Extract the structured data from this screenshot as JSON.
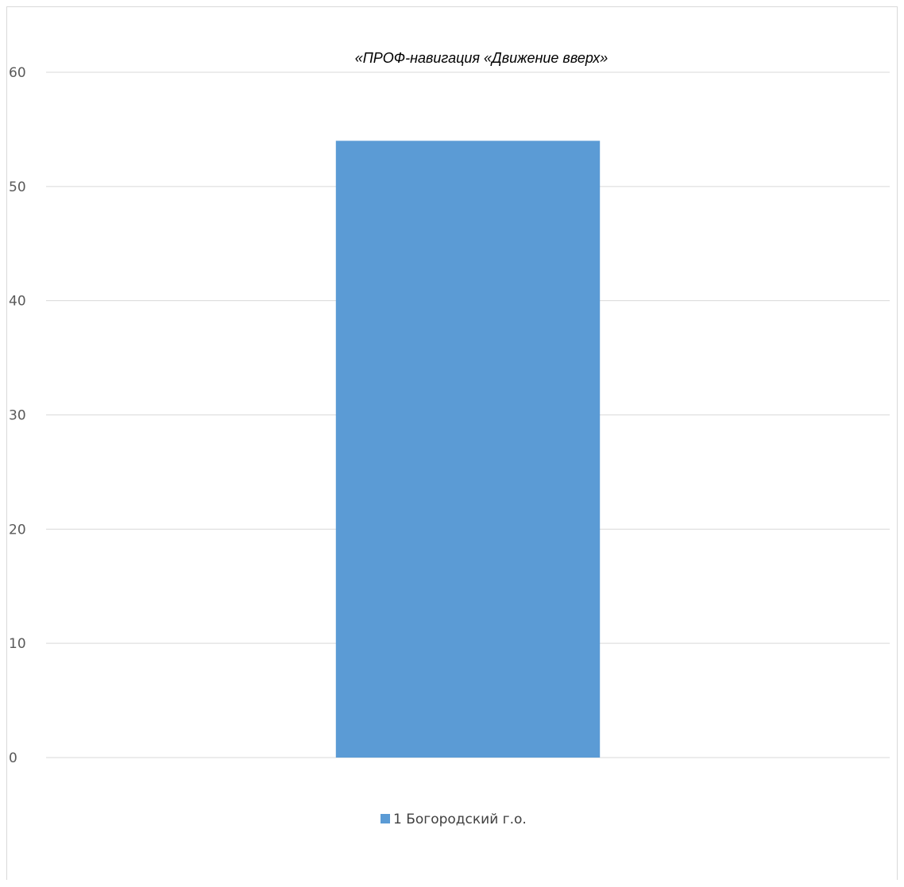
{
  "chart_data": {
    "type": "bar",
    "title": "«ПРОФ-навигация «Движение вверх»",
    "categories": [
      ""
    ],
    "series": [
      {
        "name": "1 Богородский г.о.",
        "values": [
          54
        ],
        "color": "#5b9bd5"
      }
    ],
    "ylim": [
      0,
      60
    ],
    "yticks": [
      0,
      10,
      20,
      30,
      40,
      50,
      60
    ],
    "xlabel": "",
    "ylabel": "",
    "grid": true,
    "legend_position": "bottom",
    "gridline_color": "#d9d9d9",
    "axis_text_color": "#595959"
  }
}
